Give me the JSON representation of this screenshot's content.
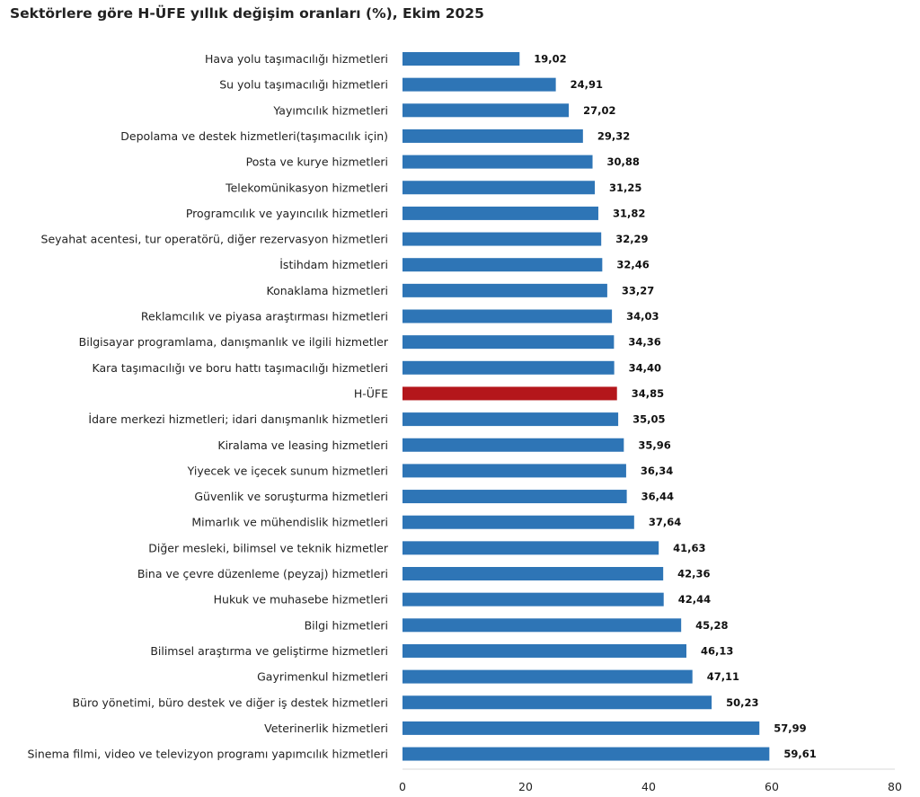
{
  "chart_data": {
    "type": "bar",
    "orientation": "horizontal",
    "title": "Sektörlere göre H-ÜFE yıllık değişim oranları (%), Ekim 2025",
    "xlim": [
      0,
      80
    ],
    "x_ticks": [
      0,
      20,
      40,
      60,
      80
    ],
    "grid": false,
    "categories": [
      "Hava yolu taşımacılığı hizmetleri",
      "Su yolu taşımacılığı hizmetleri",
      "Yayımcılık hizmetleri",
      "Depolama ve destek hizmetleri(taşımacılık için)",
      "Posta ve kurye hizmetleri",
      "Telekomünikasyon hizmetleri",
      "Programcılık ve yayıncılık hizmetleri",
      "Seyahat acentesi, tur operatörü, diğer rezervasyon hizmetleri",
      "İstihdam hizmetleri",
      "Konaklama hizmetleri",
      "Reklamcılık ve piyasa araştırması hizmetleri",
      "Bilgisayar programlama, danışmanlık ve ilgili hizmetler",
      "Kara taşımacılığı ve boru hattı taşımacılığı hizmetleri",
      "H-ÜFE",
      "İdare merkezi hizmetleri; idari danışmanlık hizmetleri",
      "Kiralama ve leasing hizmetleri",
      "Yiyecek ve içecek sunum hizmetleri",
      "Güvenlik ve soruşturma hizmetleri",
      "Mimarlık ve mühendislik hizmetleri",
      "Diğer mesleki, bilimsel ve teknik hizmetler",
      "Bina ve çevre düzenleme (peyzaj) hizmetleri",
      "Hukuk ve muhasebe hizmetleri",
      "Bilgi hizmetleri",
      "Bilimsel araştırma ve geliştirme hizmetleri",
      "Gayrimenkul hizmetleri",
      "Büro yönetimi, büro destek ve diğer iş destek hizmetleri",
      "Veterinerlik hizmetleri",
      "Sinema filmi, video ve televizyon programı yapımcılık hizmetleri"
    ],
    "values": [
      19.02,
      24.91,
      27.02,
      29.32,
      30.88,
      31.25,
      31.82,
      32.29,
      32.46,
      33.27,
      34.03,
      34.36,
      34.4,
      34.85,
      35.05,
      35.96,
      36.34,
      36.44,
      37.64,
      41.63,
      42.36,
      42.44,
      45.28,
      46.13,
      47.11,
      50.23,
      57.99,
      59.61
    ],
    "value_labels": [
      "19,02",
      "24,91",
      "27,02",
      "29,32",
      "30,88",
      "31,25",
      "31,82",
      "32,29",
      "32,46",
      "33,27",
      "34,03",
      "34,36",
      "34,40",
      "34,85",
      "35,05",
      "35,96",
      "36,34",
      "36,44",
      "37,64",
      "41,63",
      "42,36",
      "42,44",
      "45,28",
      "46,13",
      "47,11",
      "50,23",
      "57,99",
      "59,61"
    ],
    "highlight_category": "H-ÜFE",
    "colors": {
      "bar": "#2E75B6",
      "highlight": "#B4161B",
      "axis": "#d9d9d9"
    }
  }
}
